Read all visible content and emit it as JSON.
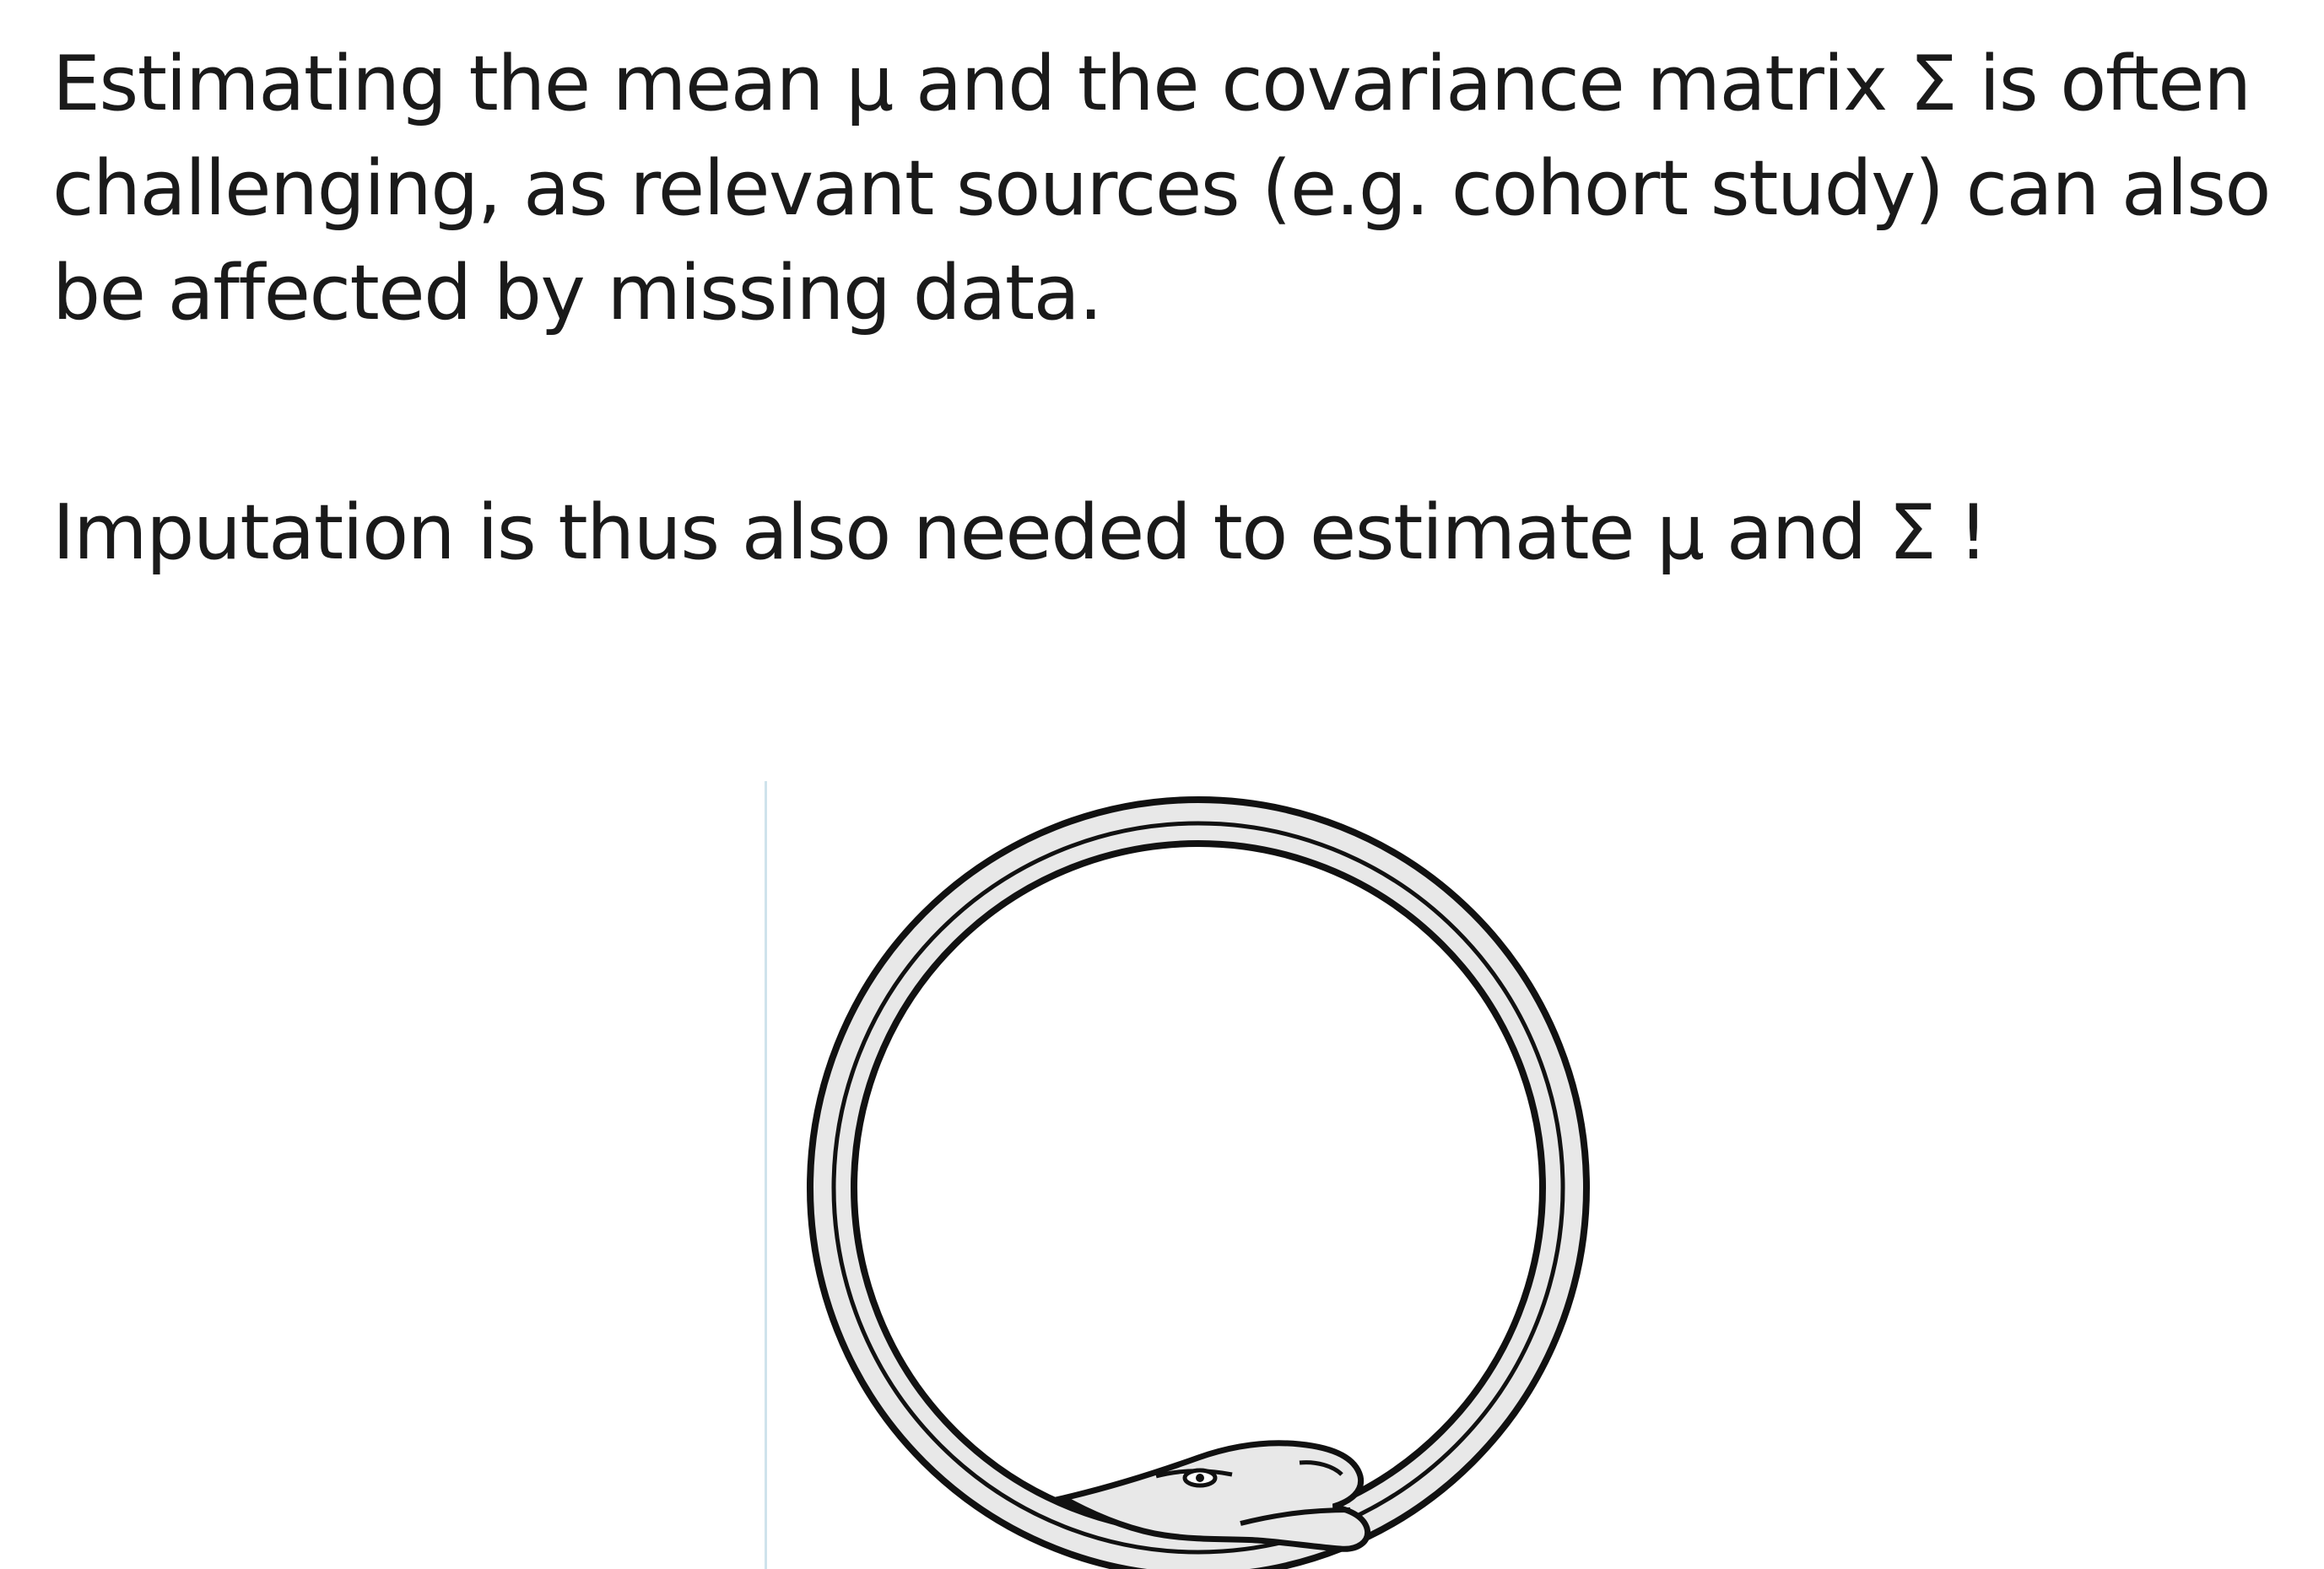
{
  "slide": {
    "paragraph_1": {
      "lines": [
        "Estimating the mean μ and the covariance matrix Σ is often",
        "challenging, as relevant sources (e.g. cohort study) can also",
        "be affected by missing data."
      ]
    },
    "paragraph_2": {
      "text": "Imputation is thus also needed to estimate μ and Σ !"
    },
    "illustration": {
      "icon": "ouroboros-icon",
      "fill_color": "#e8e8e8",
      "stroke_color": "#111111"
    }
  }
}
